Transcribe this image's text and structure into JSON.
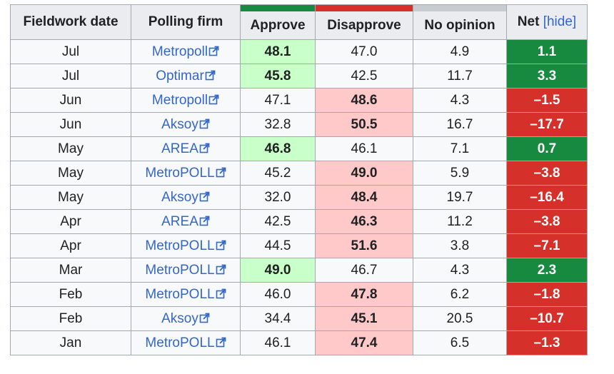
{
  "headers": {
    "date": "Fieldwork date",
    "firm": "Polling firm",
    "approve": "Approve",
    "disapprove": "Disapprove",
    "no_opinion": "No opinion",
    "net": "Net",
    "hide": "hide"
  },
  "colors": {
    "approve_bar": "#178a3f",
    "disapprove_bar": "#d6302a",
    "no_opinion_bar": "#c8ccd1",
    "approve_win": "#c9ffc9",
    "disapprove_win": "#ffc9c9",
    "net_pos": "#178a3f",
    "net_neg": "#d6302a"
  },
  "rows": [
    {
      "date": "Jul",
      "firm": "Metropoll",
      "approve": "48.1",
      "disapprove": "47.0",
      "no_opinion": "4.9",
      "net": "1.1",
      "lead": "approve"
    },
    {
      "date": "Jul",
      "firm": "Optimar",
      "approve": "45.8",
      "disapprove": "42.5",
      "no_opinion": "11.7",
      "net": "3.3",
      "lead": "approve"
    },
    {
      "date": "Jun",
      "firm": "Metropoll",
      "approve": "47.1",
      "disapprove": "48.6",
      "no_opinion": "4.3",
      "net": "–1.5",
      "lead": "disapprove"
    },
    {
      "date": "Jun",
      "firm": "Aksoy",
      "approve": "32.8",
      "disapprove": "50.5",
      "no_opinion": "16.7",
      "net": "–17.7",
      "lead": "disapprove"
    },
    {
      "date": "May",
      "firm": "AREA",
      "approve": "46.8",
      "disapprove": "46.1",
      "no_opinion": "7.1",
      "net": "0.7",
      "lead": "approve"
    },
    {
      "date": "May",
      "firm": "MetroPOLL",
      "approve": "45.2",
      "disapprove": "49.0",
      "no_opinion": "5.9",
      "net": "–3.8",
      "lead": "disapprove"
    },
    {
      "date": "May",
      "firm": "Aksoy",
      "approve": "32.0",
      "disapprove": "48.4",
      "no_opinion": "19.7",
      "net": "–16.4",
      "lead": "disapprove"
    },
    {
      "date": "Apr",
      "firm": "AREA",
      "approve": "42.5",
      "disapprove": "46.3",
      "no_opinion": "11.2",
      "net": "–3.8",
      "lead": "disapprove"
    },
    {
      "date": "Apr",
      "firm": "MetroPOLL",
      "approve": "44.5",
      "disapprove": "51.6",
      "no_opinion": "3.8",
      "net": "–7.1",
      "lead": "disapprove"
    },
    {
      "date": "Mar",
      "firm": "MetroPOLL",
      "approve": "49.0",
      "disapprove": "46.7",
      "no_opinion": "4.3",
      "net": "2.3",
      "lead": "approve"
    },
    {
      "date": "Feb",
      "firm": "MetroPOLL",
      "approve": "46.0",
      "disapprove": "47.8",
      "no_opinion": "6.2",
      "net": "–1.8",
      "lead": "disapprove"
    },
    {
      "date": "Feb",
      "firm": "Aksoy",
      "approve": "34.4",
      "disapprove": "45.1",
      "no_opinion": "20.5",
      "net": "–10.7",
      "lead": "disapprove"
    },
    {
      "date": "Jan",
      "firm": "MetroPOLL",
      "approve": "46.1",
      "disapprove": "47.4",
      "no_opinion": "6.5",
      "net": "–1.3",
      "lead": "disapprove"
    }
  ]
}
